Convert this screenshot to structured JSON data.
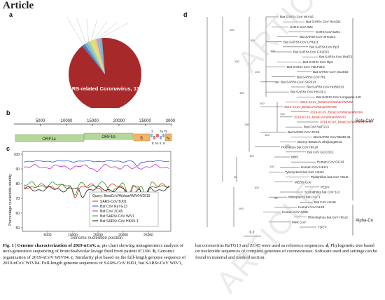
{
  "header": {
    "title": "Article"
  },
  "panels": {
    "a": "a",
    "b": "b",
    "c": "c",
    "d": "d"
  },
  "pie": {
    "main_label": "SARS-related Coronavirus, 1370",
    "colors": {
      "main": "#a8292a",
      "wedges": [
        "#4d7ab8",
        "#7fb0d6",
        "#9fd0a8",
        "#d9e47a",
        "#f3d36b",
        "#b9a6d6",
        "#6fb7c4"
      ]
    }
  },
  "genome": {
    "ticks": [
      "5000",
      "10000",
      "15000",
      "20000",
      "25000",
      "30000"
    ],
    "orfs": {
      "orf1a": "ORF1a",
      "orf1b": "ORF1b",
      "s": "S",
      "e": "E",
      "m": "M",
      "n": "N",
      "g3": "3",
      "g6": "6",
      "g7a": "7a",
      "g7b": "7b",
      "g8": "8"
    }
  },
  "similarity": {
    "ylabel": "Percentage nucleotide identity",
    "xlabel": "Genome nucleotide position",
    "ytick": [
      "100",
      "90",
      "80",
      "70",
      "60",
      "50"
    ],
    "xtick": [
      "5000",
      "10000",
      "15000",
      "20000",
      "25000"
    ],
    "legend_query": "Query: BetaCoV/Wuhan/WIV04/2019",
    "legend": [
      {
        "name": "SARS-CoV BJ01",
        "color": "#e02020"
      },
      {
        "name": "Bat CoV RaTG13",
        "color": "#3050d8"
      },
      {
        "name": "Bat CoV ZC45",
        "color": "#c02cc8"
      },
      {
        "name": "Bat SARSr-CoV WIV1",
        "color": "#2a9a2a"
      },
      {
        "name": "Bat SARSr-CoV HKU5-1",
        "color": "#1b1b1b"
      }
    ]
  },
  "tree": {
    "taxa": [
      "Bat SARSr-CoV WIV16",
      "Bat SARSr-CoV Rs4231",
      "SARS-CoV SZ3",
      "SARS-CoV BJ01",
      "Bat SARSr-CoV SHC014",
      "Bat SARSr-CoV LYRa11",
      "Bat SARSr-CoV Rp3",
      "Bat SARSr-CoV GX2013",
      "Bat SARSr-CoV Rs672",
      "Bat SARSr-CoV Rp3",
      "Bat SARSr-CoV YNLF31C",
      "Bat SARSr-CoV SC2018",
      "Bat SARSr-CoV Rf1",
      "Bat SARSr-CoV SX2013",
      "Bat SARSr-CoV HuB2013",
      "Bat SARSr-CoV HKU3-1",
      "Bat SARSr-CoV Longquan-140",
      "2019-nCoV_BetaCoV/Wuhan/WIV02",
      "2019-nCoV_BetaCoV/Wuhan/WIV05",
      "2019-nCoV_BetaCoV/Wuhan/WIV04",
      "2019-nCoV_BetaCoV/Wuhan/WIV07",
      "2019-nCoV_BetaCoV/Wuhan/WIV06",
      "Bat CoV RaTG13",
      "Bat SARSr-CoV ZC45",
      "Bat SARSr-CoV BM48-31",
      "Bat Hp-BetaCoV Zhejiang2013",
      "Rousettus bat CoV HKU9",
      "Bat CoV GCCDC1",
      "MHV",
      "Human CoV OC43",
      "Human CoV HKU1",
      "Tylonycteris bat CoV HKU4",
      "Pipistrellus bat CoV HKU5",
      "MERS-CoV",
      "PEDV",
      "Scotophilus bat CoV 512",
      "Miniopterus bat CoV 1",
      "Bat CoV HKU8",
      "Human CoV NL63",
      "Human CoV 229E",
      "Rhinolophus bat CoV HKU2",
      "Mink CoV",
      "TGEV"
    ],
    "highlight_color": "#d42020",
    "bootstraps": [
      "100",
      "100",
      "100",
      "100",
      "100",
      "99",
      "100",
      "100",
      "100",
      "100",
      "100",
      "100",
      "100",
      "100",
      "96",
      "100",
      "96",
      "100"
    ],
    "clades": {
      "beta": "Beta-CoV",
      "alpha": "Alpha-Co"
    },
    "scale": "0.2"
  },
  "caption_left": {
    "bold": "Fig. 1 | Genome characterization of 2019-nCoV.",
    "text_a": "a",
    "t1": ", pie chart showing metagenomics analysis of next-generation sequencing of bronchoalveolar lavage fluid from patient ICU06. ",
    "text_b": "b",
    "t2": ", Genomic organization of 2019-nCoV WIV04. ",
    "text_c": "c",
    "t3": ", Similarity plot based on the full-length genome sequence of 2019-nCoV WIV04. Full-length genome sequences of SARS-CoV BJ01, bat SARSr-CoV WIV1,"
  },
  "caption_right": {
    "t1": "bat coronavirus RaTG13 and ZC45 were used as reference sequences. ",
    "text_d": "d",
    "t2": ", Phylogenetic tree based on nucleotide sequences of complete genomes of coronaviruses. Software used and settings can be found in material and method section."
  },
  "watermark": {
    "w1": "ARTICLE IN REVIEW",
    "w2": "ARTICLE"
  }
}
